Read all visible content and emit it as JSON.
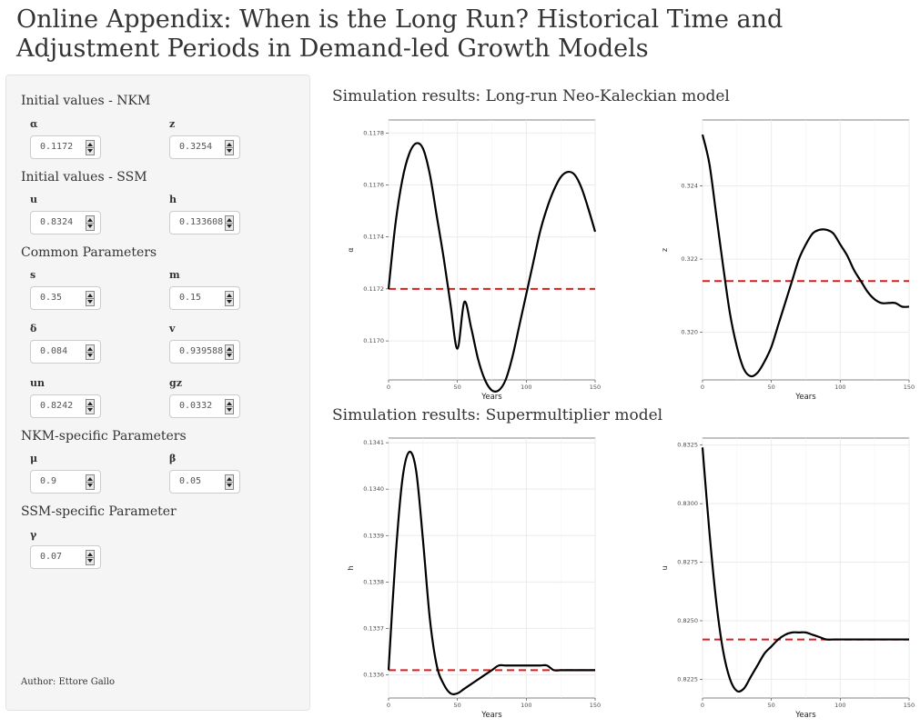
{
  "page": {
    "title": "Online Appendix: When is the Long Run? Historical Time and Adjustment Periods in Demand-led Growth Models"
  },
  "sidebar": {
    "sections": {
      "nkm_init": "Initial values - NKM",
      "ssm_init": "Initial values - SSM",
      "common": "Common Parameters",
      "nkm_specific": "NKM-specific Parameters",
      "ssm_specific": "SSM-specific Parameter"
    },
    "params": {
      "alpha": {
        "label": "α",
        "value": "0.1172"
      },
      "z": {
        "label": "z",
        "value": "0.3254"
      },
      "u": {
        "label": "u",
        "value": "0.8324"
      },
      "h": {
        "label": "h",
        "value": "0.133608"
      },
      "s": {
        "label": "s",
        "value": "0.35"
      },
      "m": {
        "label": "m",
        "value": "0.15"
      },
      "delta": {
        "label": "δ",
        "value": "0.084"
      },
      "v": {
        "label": "v",
        "value": "0.939588"
      },
      "un": {
        "label": "un",
        "value": "0.8242"
      },
      "gz": {
        "label": "gz",
        "value": "0.0332"
      },
      "mu": {
        "label": "μ",
        "value": "0.9"
      },
      "beta": {
        "label": "β",
        "value": "0.05"
      },
      "gamma": {
        "label": "γ",
        "value": "0.07"
      }
    },
    "author": "Author: Ettore Gallo"
  },
  "main": {
    "nkm_title": "Simulation results: Long-run Neo-Kaleckian model",
    "ssm_title": "Simulation results: Supermultiplier model"
  },
  "colors": {
    "curve": "#000000",
    "ref_line": "#dd1c1c",
    "grid": "#ebebeb",
    "sidebar_bg": "#f5f5f5"
  },
  "chart_data": [
    {
      "type": "line",
      "id": "alpha_plot",
      "xlabel": "Years",
      "ylabel": "α",
      "xlim": [
        0,
        150
      ],
      "ylim": [
        0.11685,
        0.11785
      ],
      "xticks": [
        0,
        50,
        100,
        150
      ],
      "xtick_labels": [
        "0",
        "50",
        "100",
        "150"
      ],
      "yticks": [
        0.117,
        0.1172,
        0.1174,
        0.1176,
        0.1178
      ],
      "ytick_labels": [
        "0.1170",
        "0.1172",
        "0.1174",
        "0.1176",
        "0.1178"
      ],
      "ref_line": 0.1172,
      "x": [
        0,
        5,
        10,
        15,
        20,
        25,
        30,
        35,
        40,
        45,
        50,
        55,
        60,
        65,
        70,
        75,
        80,
        85,
        90,
        95,
        100,
        105,
        110,
        115,
        120,
        125,
        130,
        135,
        140,
        145,
        150
      ],
      "y": [
        0.1172,
        0.11745,
        0.11762,
        0.11772,
        0.11776,
        0.11774,
        0.11764,
        0.11748,
        0.11732,
        0.11714,
        0.11697,
        0.11715,
        0.11705,
        0.11693,
        0.11685,
        0.11681,
        0.11681,
        0.11685,
        0.11694,
        0.11706,
        0.11718,
        0.1173,
        0.11742,
        0.11751,
        0.11758,
        0.11763,
        0.11765,
        0.11764,
        0.11759,
        0.11751,
        0.11742
      ],
      "grid": true
    },
    {
      "type": "line",
      "id": "z_plot",
      "xlabel": "Years",
      "ylabel": "z",
      "xlim": [
        0,
        150
      ],
      "ylim": [
        0.3187,
        0.3258
      ],
      "xticks": [
        0,
        50,
        100,
        150
      ],
      "xtick_labels": [
        "0",
        "50",
        "100",
        "150"
      ],
      "yticks": [
        0.32,
        0.322,
        0.324
      ],
      "ytick_labels": [
        "0.320",
        "0.322",
        "0.324"
      ],
      "ref_line": 0.3214,
      "x": [
        0,
        5,
        10,
        15,
        20,
        25,
        30,
        35,
        40,
        45,
        50,
        55,
        60,
        65,
        70,
        75,
        80,
        85,
        90,
        95,
        100,
        105,
        110,
        115,
        120,
        125,
        130,
        135,
        140,
        145,
        150
      ],
      "y": [
        0.3254,
        0.3246,
        0.3232,
        0.3218,
        0.3205,
        0.3196,
        0.319,
        0.3188,
        0.3189,
        0.3192,
        0.3196,
        0.3202,
        0.3208,
        0.3214,
        0.322,
        0.3224,
        0.3227,
        0.3228,
        0.3228,
        0.3227,
        0.3224,
        0.3221,
        0.3217,
        0.3214,
        0.3211,
        0.3209,
        0.3208,
        0.3208,
        0.3208,
        0.3207,
        0.3207
      ],
      "grid": true
    },
    {
      "type": "line",
      "id": "h_plot",
      "xlabel": "Years",
      "ylabel": "h",
      "xlim": [
        0,
        150
      ],
      "ylim": [
        0.13355,
        0.13411
      ],
      "xticks": [
        0,
        50,
        100,
        150
      ],
      "xtick_labels": [
        "0",
        "50",
        "100",
        "150"
      ],
      "yticks": [
        0.1336,
        0.1337,
        0.1338,
        0.1339,
        0.134,
        0.1341
      ],
      "ytick_labels": [
        "0.1336",
        "0.1337",
        "0.1338",
        "0.1339",
        "0.1340",
        "0.1341"
      ],
      "ref_line": 0.13361,
      "x": [
        0,
        5,
        10,
        15,
        20,
        25,
        30,
        35,
        40,
        45,
        50,
        55,
        60,
        65,
        70,
        75,
        80,
        85,
        90,
        95,
        100,
        105,
        110,
        115,
        120,
        125,
        130,
        135,
        140,
        145,
        150
      ],
      "y": [
        0.13361,
        0.13385,
        0.13402,
        0.13408,
        0.13404,
        0.13389,
        0.13372,
        0.13362,
        0.13358,
        0.13356,
        0.13356,
        0.13357,
        0.13358,
        0.13359,
        0.1336,
        0.13361,
        0.13362,
        0.13362,
        0.13362,
        0.13362,
        0.13362,
        0.13362,
        0.13362,
        0.13362,
        0.13361,
        0.13361,
        0.13361,
        0.13361,
        0.13361,
        0.13361,
        0.13361
      ],
      "grid": true
    },
    {
      "type": "line",
      "id": "u_plot",
      "xlabel": "Years",
      "ylabel": "u",
      "xlim": [
        0,
        150
      ],
      "ylim": [
        0.8217,
        0.8328
      ],
      "xticks": [
        0,
        50,
        100,
        150
      ],
      "xtick_labels": [
        "0",
        "50",
        "100",
        "150"
      ],
      "yticks": [
        0.8225,
        0.825,
        0.8275,
        0.83,
        0.8325
      ],
      "ytick_labels": [
        "0.8225",
        "0.8250",
        "0.8275",
        "0.8300",
        "0.8325"
      ],
      "ref_line": 0.8242,
      "x": [
        0,
        5,
        10,
        15,
        20,
        25,
        30,
        35,
        40,
        45,
        50,
        55,
        60,
        65,
        70,
        75,
        80,
        85,
        90,
        95,
        100,
        105,
        110,
        115,
        120,
        125,
        130,
        135,
        140,
        145,
        150
      ],
      "y": [
        0.8324,
        0.8288,
        0.8258,
        0.8237,
        0.8225,
        0.822,
        0.8221,
        0.8226,
        0.8231,
        0.8236,
        0.8239,
        0.8242,
        0.8244,
        0.8245,
        0.8245,
        0.8245,
        0.8244,
        0.8243,
        0.8242,
        0.8242,
        0.8242,
        0.8242,
        0.8242,
        0.8242,
        0.8242,
        0.8242,
        0.8242,
        0.8242,
        0.8242,
        0.8242,
        0.8242
      ],
      "grid": true
    }
  ]
}
